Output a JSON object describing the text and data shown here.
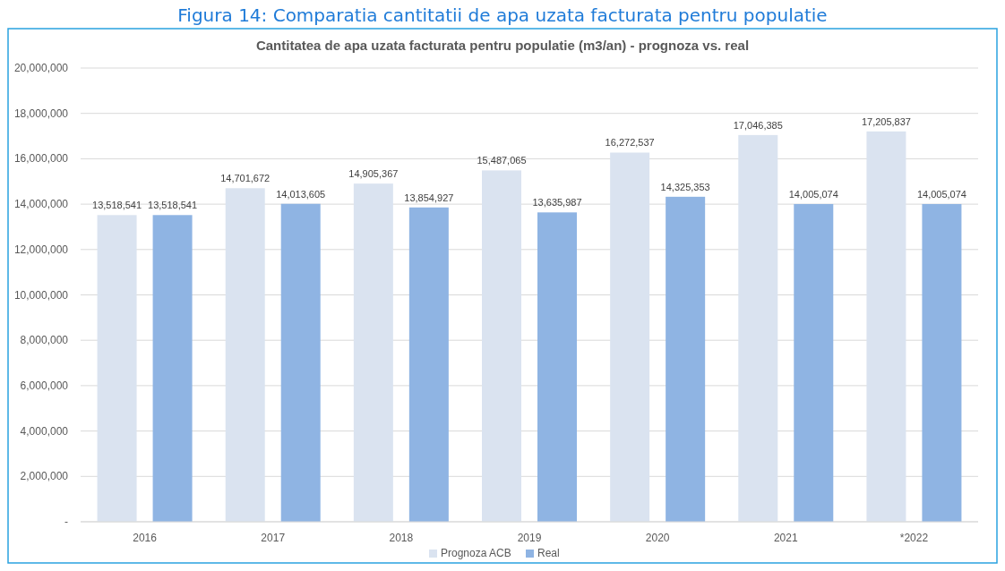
{
  "chart_data": {
    "type": "bar",
    "title": "Figura 14: Comparatia cantitatii de apa uzata facturata pentru populatie",
    "subtitle": "Cantitatea de apa uzata facturata pentru populatie (m3/an) - prognoza vs. real",
    "categories": [
      "2016",
      "2017",
      "2018",
      "2019",
      "2020",
      "2021",
      "*2022"
    ],
    "series": [
      {
        "name": "Prognoza ACB",
        "color": "#dae3f0",
        "values": [
          13518541,
          14701672,
          14905367,
          15487065,
          16272537,
          17046385,
          17205837
        ],
        "value_labels": [
          "13,518,541",
          "14,701,672",
          "14,905,367",
          "15,487,065",
          "16,272,537",
          "17,046,385",
          "17,205,837"
        ]
      },
      {
        "name": "Real",
        "color": "#8fb4e3",
        "values": [
          13518541,
          14013605,
          13854927,
          13635987,
          14325353,
          14005074,
          14005074
        ],
        "value_labels": [
          "13,518,541",
          "14,013,605",
          "13,854,927",
          "13,635,987",
          "14,325,353",
          "14,005,074",
          "14,005,074"
        ]
      }
    ],
    "ylim": [
      0,
      20000000
    ],
    "yticks": [
      {
        "value": 0,
        "label": "-"
      },
      {
        "value": 2000000,
        "label": "2,000,000"
      },
      {
        "value": 4000000,
        "label": "4,000,000"
      },
      {
        "value": 6000000,
        "label": "6,000,000"
      },
      {
        "value": 8000000,
        "label": "8,000,000"
      },
      {
        "value": 10000000,
        "label": "10,000,000"
      },
      {
        "value": 12000000,
        "label": "12,000,000"
      },
      {
        "value": 14000000,
        "label": "14,000,000"
      },
      {
        "value": 16000000,
        "label": "16,000,000"
      },
      {
        "value": 18000000,
        "label": "18,000,000"
      },
      {
        "value": 20000000,
        "label": "20,000,000"
      }
    ],
    "grid": "y",
    "legend": "bottom"
  }
}
